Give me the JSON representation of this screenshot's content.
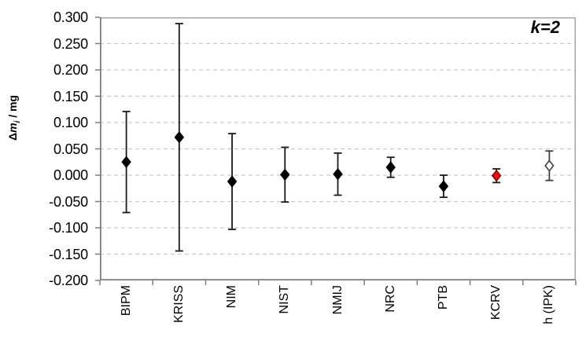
{
  "chart_data": {
    "type": "scatter",
    "subtype": "error-bar-comparison",
    "annotation": "k=2",
    "ylabel": "Δm_i / mg",
    "ylabel_parts": {
      "delta": "Δ",
      "symbol": "m",
      "sub": "i",
      "unit": " / mg"
    },
    "ylim": [
      -0.2,
      0.3
    ],
    "ytick_step": 0.05,
    "ytick_values": [
      0.3,
      0.25,
      0.2,
      0.15,
      0.1,
      0.05,
      0.0,
      -0.05,
      -0.1,
      -0.15,
      -0.2
    ],
    "ytick_labels": [
      "0.300",
      "0.250",
      "0.200",
      "0.150",
      "0.100",
      "0.050",
      "0.000",
      "-0.050",
      "-0.100",
      "-0.150",
      "-0.200"
    ],
    "categories": [
      "BIPM",
      "KRISS",
      "NIM",
      "NIST",
      "NMIJ",
      "NRC",
      "PTB",
      "KCRV",
      "h (IPK)"
    ],
    "grid": "horizontal-dashed",
    "legend": "none",
    "points": [
      {
        "label": "BIPM",
        "value": 0.025,
        "uncertainty": 0.096,
        "marker": "diamond-black"
      },
      {
        "label": "KRISS",
        "value": 0.072,
        "uncertainty": 0.216,
        "marker": "diamond-black"
      },
      {
        "label": "NIM",
        "value": -0.012,
        "uncertainty": 0.091,
        "marker": "diamond-black"
      },
      {
        "label": "NIST",
        "value": 0.001,
        "uncertainty": 0.052,
        "marker": "diamond-black"
      },
      {
        "label": "NMIJ",
        "value": 0.002,
        "uncertainty": 0.04,
        "marker": "diamond-black"
      },
      {
        "label": "NRC",
        "value": 0.015,
        "uncertainty": 0.019,
        "marker": "diamond-black"
      },
      {
        "label": "PTB",
        "value": -0.021,
        "uncertainty": 0.021,
        "marker": "diamond-black"
      },
      {
        "label": "KCRV",
        "value": -0.001,
        "uncertainty": 0.013,
        "marker": "diamond-red"
      },
      {
        "label": "h (IPK)",
        "value": 0.018,
        "uncertainty": 0.028,
        "marker": "diamond-open"
      }
    ],
    "colors": {
      "marker_black": "#000000",
      "marker_red_fill": "#ee1111",
      "marker_red_stroke": "#8b0000",
      "marker_open_fill": "#ffffff",
      "marker_open_stroke": "#3f3f3f",
      "error_bar": "#1a1a1a",
      "grid": "#c9c9c9",
      "axis": "#7d7d7d",
      "border": "#a6a6a6",
      "text": "#000000"
    }
  }
}
